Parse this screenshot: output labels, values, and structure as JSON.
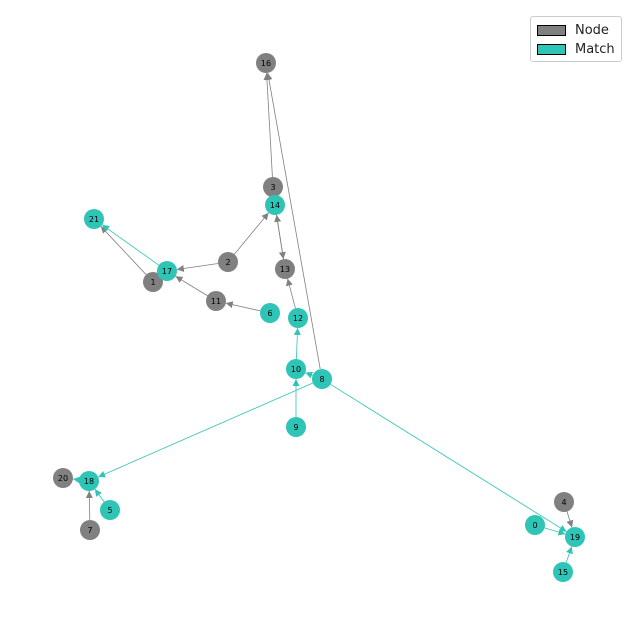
{
  "colors": {
    "node": "#808080",
    "match": "#2ec4b6",
    "edge_node": "#808080",
    "edge_match": "#2ec4b6"
  },
  "legend": {
    "items": [
      {
        "label": "Node",
        "color": "#808080"
      },
      {
        "label": "Match",
        "color": "#2ec4b6"
      }
    ]
  },
  "nodes": [
    {
      "id": "0",
      "kind": "match"
    },
    {
      "id": "1",
      "kind": "node"
    },
    {
      "id": "2",
      "kind": "node"
    },
    {
      "id": "3",
      "kind": "node"
    },
    {
      "id": "4",
      "kind": "node"
    },
    {
      "id": "5",
      "kind": "match"
    },
    {
      "id": "6",
      "kind": "match"
    },
    {
      "id": "7",
      "kind": "node"
    },
    {
      "id": "8",
      "kind": "match"
    },
    {
      "id": "9",
      "kind": "match"
    },
    {
      "id": "10",
      "kind": "match"
    },
    {
      "id": "11",
      "kind": "node"
    },
    {
      "id": "12",
      "kind": "match"
    },
    {
      "id": "13",
      "kind": "node"
    },
    {
      "id": "14",
      "kind": "match"
    },
    {
      "id": "15",
      "kind": "match"
    },
    {
      "id": "16",
      "kind": "node"
    },
    {
      "id": "17",
      "kind": "match"
    },
    {
      "id": "18",
      "kind": "match"
    },
    {
      "id": "19",
      "kind": "match"
    },
    {
      "id": "20",
      "kind": "node"
    },
    {
      "id": "21",
      "kind": "match"
    }
  ],
  "edges": [
    {
      "source": "3",
      "target": "16",
      "kind": "node"
    },
    {
      "source": "8",
      "target": "16",
      "kind": "node"
    },
    {
      "source": "2",
      "target": "14",
      "kind": "node"
    },
    {
      "source": "14",
      "target": "13",
      "kind": "node"
    },
    {
      "source": "13",
      "target": "14",
      "kind": "node"
    },
    {
      "source": "2",
      "target": "17",
      "kind": "node"
    },
    {
      "source": "1",
      "target": "21",
      "kind": "node"
    },
    {
      "source": "17",
      "target": "21",
      "kind": "match"
    },
    {
      "source": "11",
      "target": "17",
      "kind": "node"
    },
    {
      "source": "6",
      "target": "11",
      "kind": "node"
    },
    {
      "source": "12",
      "target": "13",
      "kind": "node"
    },
    {
      "source": "10",
      "target": "12",
      "kind": "match"
    },
    {
      "source": "9",
      "target": "10",
      "kind": "match"
    },
    {
      "source": "8",
      "target": "10",
      "kind": "match"
    },
    {
      "source": "8",
      "target": "18",
      "kind": "match"
    },
    {
      "source": "8",
      "target": "19",
      "kind": "match"
    },
    {
      "source": "18",
      "target": "20",
      "kind": "match"
    },
    {
      "source": "7",
      "target": "18",
      "kind": "node"
    },
    {
      "source": "5",
      "target": "18",
      "kind": "match"
    },
    {
      "source": "0",
      "target": "19",
      "kind": "match"
    },
    {
      "source": "4",
      "target": "19",
      "kind": "node"
    },
    {
      "source": "15",
      "target": "19",
      "kind": "match"
    }
  ]
}
